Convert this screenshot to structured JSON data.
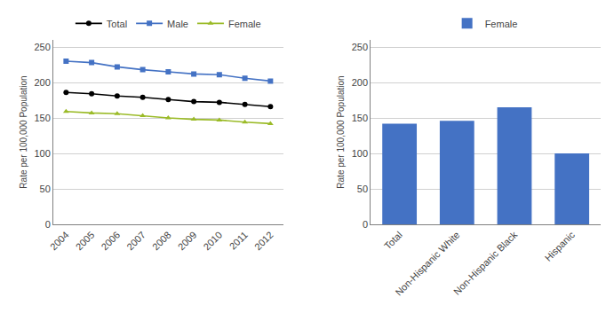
{
  "chart_data": [
    {
      "type": "line",
      "x": [
        2004,
        2005,
        2006,
        2007,
        2008,
        2009,
        2010,
        2011,
        2012
      ],
      "series": [
        {
          "name": "Total",
          "color": "#000000",
          "marker": "circle",
          "values": [
            186,
            184,
            181,
            179,
            176,
            173,
            172,
            169,
            166
          ]
        },
        {
          "name": "Male",
          "color": "#4472C4",
          "marker": "square",
          "values": [
            230,
            228,
            222,
            218,
            215,
            212,
            211,
            206,
            202
          ]
        },
        {
          "name": "Female",
          "color": "#9BBB28",
          "marker": "triangle-up",
          "values": [
            159,
            157,
            156,
            153,
            150,
            148,
            147,
            144,
            142
          ]
        }
      ],
      "xlim": [
        2003.5,
        2012.5
      ],
      "xticks": [
        2004,
        2005,
        2006,
        2007,
        2008,
        2009,
        2010,
        2011,
        2012
      ],
      "ylim": [
        0,
        260
      ],
      "yticks": [
        0,
        50,
        100,
        150,
        200,
        250
      ],
      "ylabel": "Rate per 100,000 Population",
      "grid": true,
      "legend": "top"
    },
    {
      "type": "bar",
      "categories": [
        "Total",
        "Non-Hispanic White",
        "Non-Hispanic Black",
        "Hispanic"
      ],
      "series": [
        {
          "name": "Female",
          "color": "#4472C4",
          "values": [
            142,
            146,
            165,
            100
          ]
        }
      ],
      "ylim": [
        0,
        260
      ],
      "yticks": [
        0,
        50,
        100,
        150,
        200,
        250
      ],
      "ylabel": "Rate per 100,000 Population",
      "grid": true,
      "legend": "top"
    }
  ]
}
